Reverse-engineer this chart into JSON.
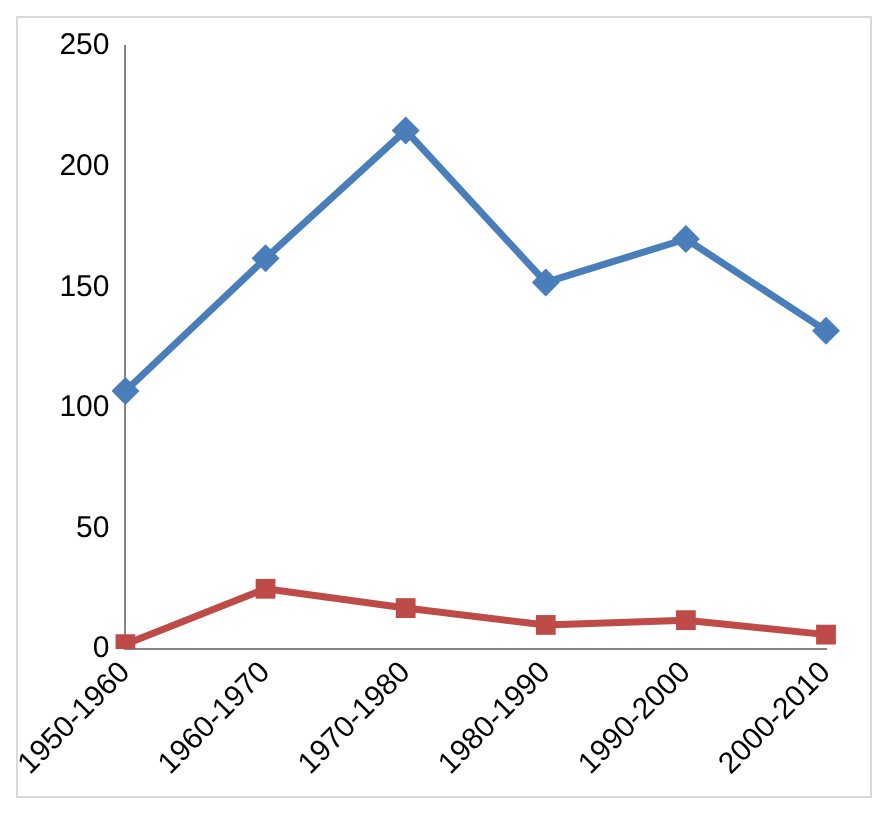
{
  "chart_data": {
    "type": "line",
    "categories": [
      "1950-1960",
      "1960-1970",
      "1970-1980",
      "1980-1990",
      "1990-2000",
      "2000-2010"
    ],
    "series": [
      {
        "color": "#4a7ebb",
        "marker": "diamond",
        "values": [
          107,
          162,
          215,
          152,
          170,
          132
        ]
      },
      {
        "color": "#be4b48",
        "marker": "square",
        "values": [
          2,
          25,
          17,
          10,
          12,
          6
        ]
      }
    ],
    "ylim": [
      0,
      250
    ],
    "yticks": [
      0,
      50,
      100,
      150,
      200,
      250
    ],
    "grid": false,
    "legend": false,
    "line_style": "solid"
  }
}
